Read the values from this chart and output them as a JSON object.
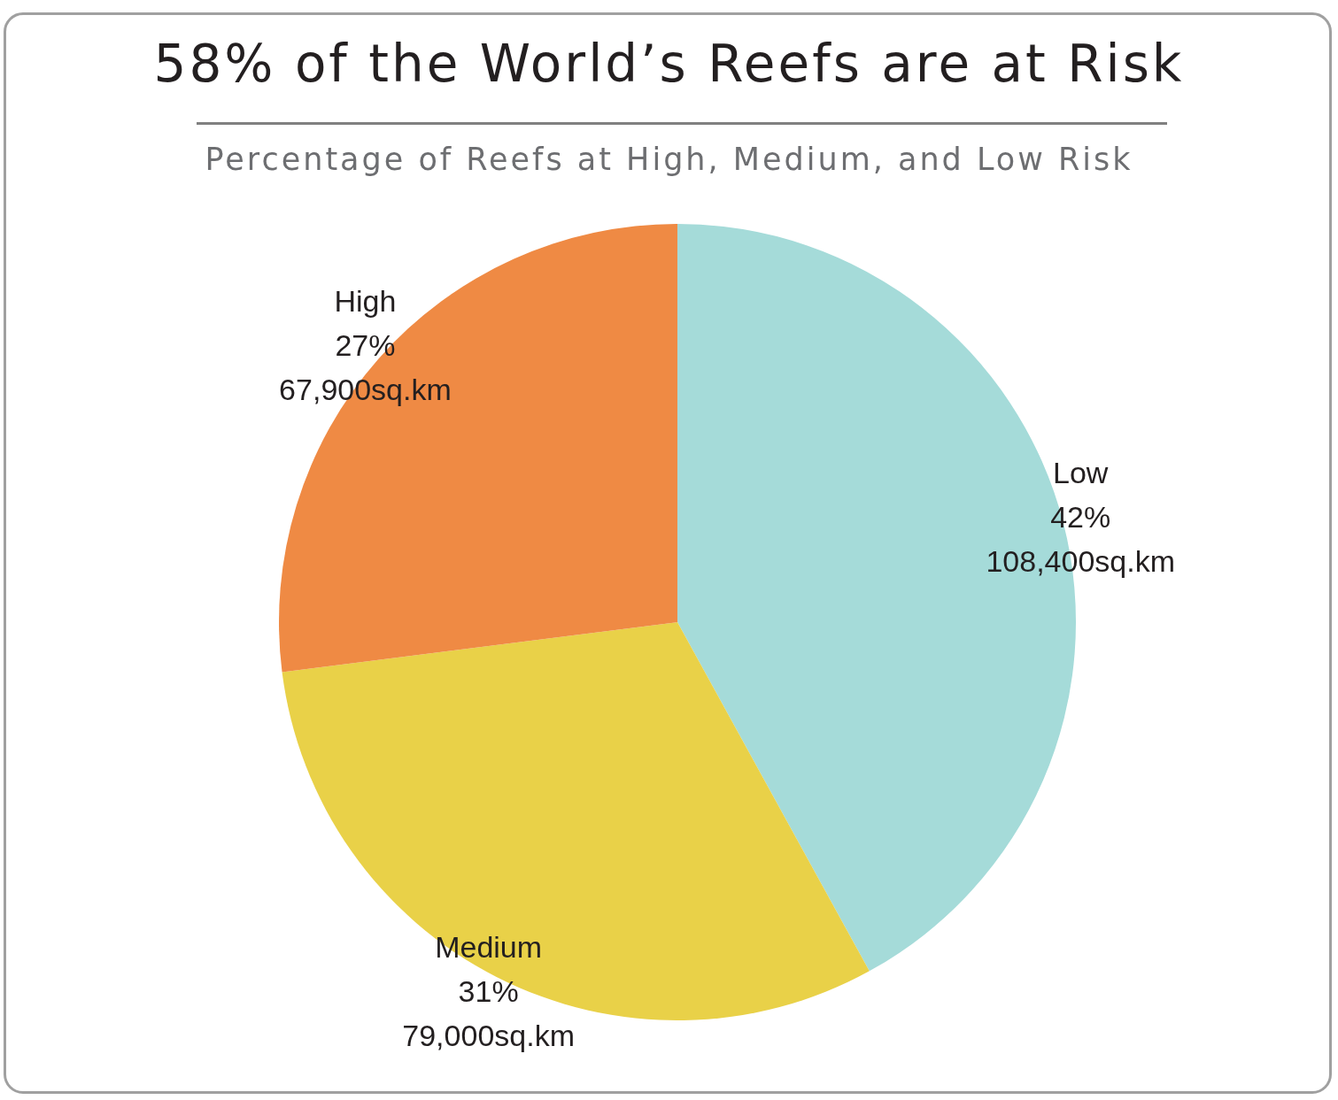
{
  "chart_data": {
    "type": "pie",
    "title": "58% of the World’s Reefs are at Risk",
    "subtitle": "Percentage of Reefs at High, Medium, and Low Risk",
    "categories": [
      "Low",
      "Medium",
      "High"
    ],
    "values": [
      42,
      31,
      27
    ],
    "colors": [
      "#a5dbd9",
      "#e9d148",
      "#ef8a44"
    ],
    "value_labels": [
      "42%",
      "31%",
      "27%"
    ],
    "annotations": [
      "108,400sq.km",
      "79,000sq.km",
      "67,900sq.km"
    ]
  }
}
